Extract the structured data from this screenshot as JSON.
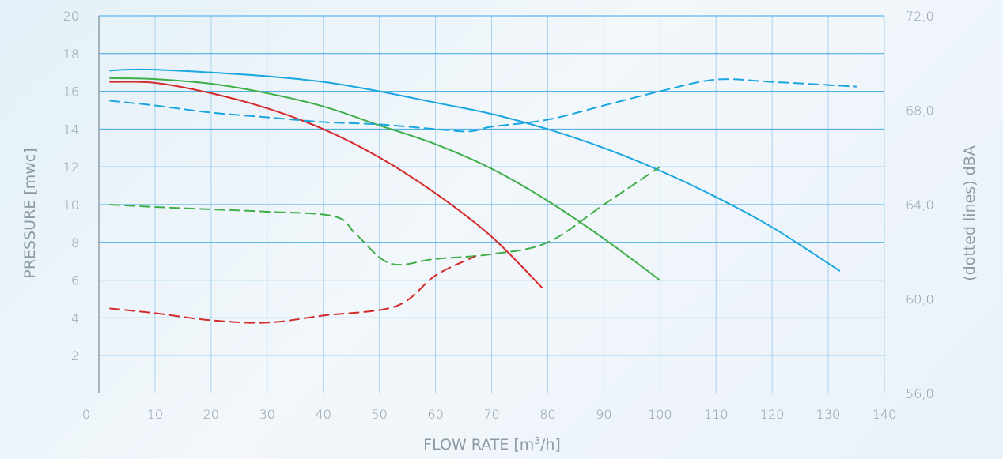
{
  "chart_data": {
    "type": "line",
    "xlabel": "FLOW RATE [m",
    "xlabel_sup": "3",
    "xlabel_end": "/h]",
    "ylabel": "PRESSURE [mwc]",
    "y2label": "(dotted lines) dBA",
    "xlim": [
      0,
      140
    ],
    "ylim": [
      0,
      20
    ],
    "y2lim": [
      56,
      72
    ],
    "x_ticks": [
      "0",
      "10",
      "20",
      "30",
      "40",
      "50",
      "60",
      "70",
      "80",
      "90",
      "100",
      "110",
      "120",
      "130",
      "140"
    ],
    "y_ticks": [
      "2",
      "4",
      "6",
      "8",
      "10",
      "12",
      "14",
      "16",
      "18",
      "20"
    ],
    "y2_ticks": [
      "56,0",
      "60,0",
      "64,0",
      "68,0",
      "72,0"
    ],
    "grid": true,
    "series": [
      {
        "axis": "left",
        "style": "solid",
        "color": "#1aa6df",
        "x": [
          2,
          5,
          10,
          20,
          30,
          40,
          50,
          60,
          70,
          80,
          90,
          100,
          110,
          120,
          132
        ],
        "y": [
          17.1,
          17.15,
          17.15,
          17.0,
          16.8,
          16.5,
          16.0,
          15.4,
          14.8,
          14.0,
          13.0,
          11.8,
          10.4,
          8.8,
          6.5
        ]
      },
      {
        "axis": "left",
        "style": "solid",
        "color": "#3fae49",
        "x": [
          2,
          10,
          20,
          30,
          40,
          50,
          60,
          70,
          80,
          90,
          100
        ],
        "y": [
          16.7,
          16.65,
          16.4,
          15.9,
          15.2,
          14.2,
          13.2,
          11.9,
          10.2,
          8.2,
          6.0
        ]
      },
      {
        "axis": "left",
        "style": "solid",
        "color": "#d42a2a",
        "x": [
          2,
          10,
          20,
          30,
          40,
          50,
          60,
          70,
          79
        ],
        "y": [
          16.5,
          16.45,
          15.9,
          15.1,
          14.0,
          12.5,
          10.6,
          8.3,
          5.6
        ]
      },
      {
        "axis": "right",
        "style": "dashed",
        "color": "#1aa6df",
        "x": [
          2,
          10,
          20,
          30,
          40,
          50,
          60,
          66,
          70,
          80,
          90,
          100,
          110,
          120,
          135
        ],
        "y": [
          68.4,
          68.2,
          67.9,
          67.7,
          67.5,
          67.4,
          67.2,
          67.1,
          67.3,
          67.6,
          68.2,
          68.8,
          69.3,
          69.2,
          69.0
        ]
      },
      {
        "axis": "right",
        "style": "dashed",
        "color": "#3fae49",
        "x": [
          2,
          10,
          20,
          30,
          42,
          46,
          52,
          60,
          70,
          80,
          90,
          100
        ],
        "y": [
          64.0,
          63.9,
          63.8,
          63.7,
          63.5,
          62.7,
          61.5,
          61.7,
          61.9,
          62.4,
          64.0,
          65.6
        ]
      },
      {
        "axis": "right",
        "style": "dashed",
        "color": "#d42a2a",
        "x": [
          2,
          10,
          20,
          30,
          40,
          53,
          60,
          67
        ],
        "y": [
          59.6,
          59.4,
          59.1,
          59.0,
          59.3,
          59.7,
          61.0,
          61.8
        ]
      }
    ]
  }
}
